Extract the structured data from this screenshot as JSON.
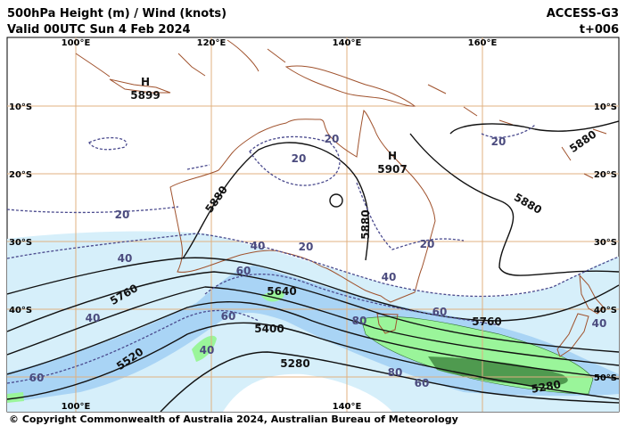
{
  "header": {
    "title": "500hPa Height (m) / Wind (knots)",
    "valid": "Valid 00UTC Sun 4 Feb 2024",
    "model": "ACCESS-G3",
    "step": "t+006"
  },
  "map": {
    "lon_labels_top": [
      "100°E",
      "120°E",
      "140°E",
      "160°E"
    ],
    "lon_labels_bottom": [
      "100°E",
      "140°E"
    ],
    "lat_labels_left": [
      "10°S",
      "20°S",
      "30°S",
      "40°S"
    ],
    "lat_labels_right": [
      "10°S",
      "20°S",
      "30°S",
      "40°S",
      "50°S"
    ],
    "highs": [
      {
        "symbol": "H",
        "value": "5899"
      },
      {
        "symbol": "H",
        "value": "5907"
      }
    ],
    "height_labels": [
      "5880",
      "5880",
      "5880",
      "5880",
      "5760",
      "5760",
      "5640",
      "5520",
      "5400",
      "5280",
      "5280"
    ],
    "wind_labels": [
      "20",
      "20",
      "20",
      "20",
      "20",
      "20",
      "40",
      "40",
      "40",
      "40",
      "40",
      "40",
      "60",
      "60",
      "60",
      "60",
      "60",
      "80",
      "80"
    ]
  },
  "footer": {
    "copyright": "© Copyright Commonwealth of Australia 2024, Australian Bureau of Meteorology"
  }
}
